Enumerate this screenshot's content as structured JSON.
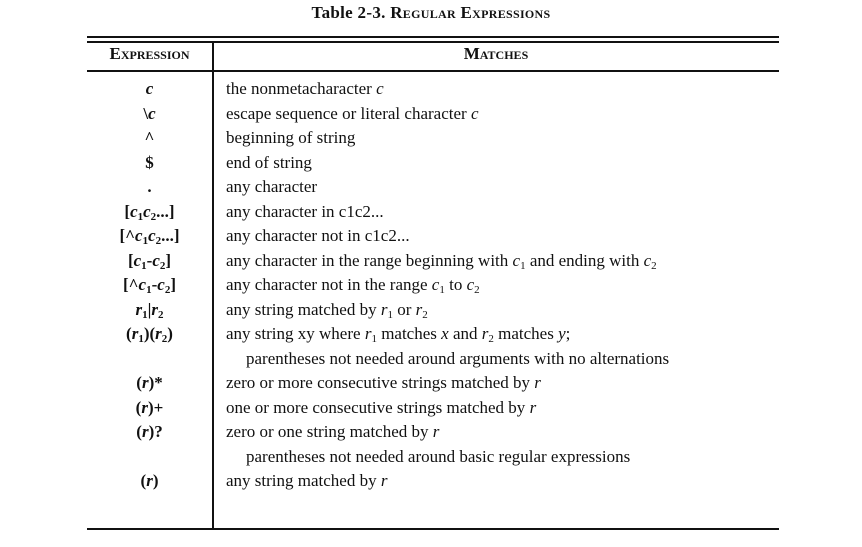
{
  "caption": {
    "number": "Table 2-3.",
    "title": "Regular Expressions"
  },
  "headers": {
    "expression": "Expression",
    "matches": "Matches"
  },
  "rows": [
    {
      "expr": "c",
      "desc": "the nonmetacharacter c"
    },
    {
      "expr": "\\c",
      "desc": "escape sequence or literal character c"
    },
    {
      "expr": "^",
      "desc": "beginning of string"
    },
    {
      "expr": "$",
      "desc": "end of string"
    },
    {
      "expr": ".",
      "desc": "any character"
    },
    {
      "expr": "[c1c2...]",
      "desc": "any character in c1c2..."
    },
    {
      "expr": "[^c1c2...]",
      "desc": "any character not in c1c2..."
    },
    {
      "expr": "[c1-c2]",
      "desc": "any character in the range beginning with c1 and ending with c2"
    },
    {
      "expr": "[^c1-c2]",
      "desc": "any character not in the range c1 to c2"
    },
    {
      "expr": "r1|r2",
      "desc": "any string matched by r1 or r2"
    },
    {
      "expr": "(r1)(r2)",
      "desc": "any string xy where r1 matches x and r2 matches y;"
    },
    {
      "expr": "",
      "desc": "parentheses not needed around arguments with no alternations"
    },
    {
      "expr": "(r)*",
      "desc": "zero or more consecutive strings matched by r"
    },
    {
      "expr": "(r)+",
      "desc": "one or more consecutive strings matched by r"
    },
    {
      "expr": "(r)?",
      "desc": "zero or one string matched by r"
    },
    {
      "expr": "",
      "desc": "parentheses not needed around basic regular expressions"
    },
    {
      "expr": "(r)",
      "desc": "any string matched by r"
    }
  ]
}
